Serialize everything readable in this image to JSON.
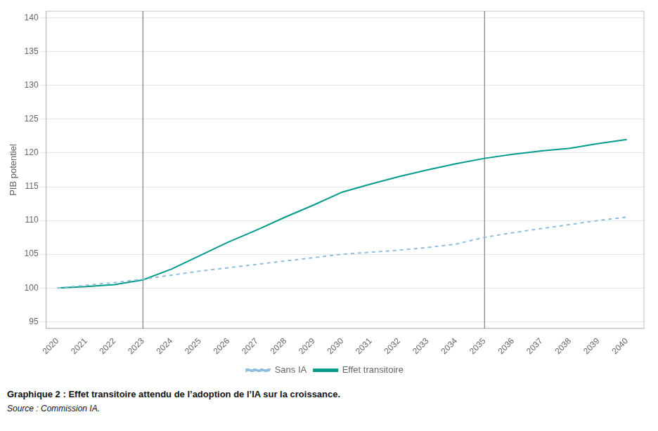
{
  "chart_data": {
    "type": "line",
    "x": [
      2020,
      2021,
      2022,
      2023,
      2024,
      2025,
      2026,
      2027,
      2028,
      2029,
      2030,
      2031,
      2032,
      2033,
      2034,
      2035,
      2036,
      2037,
      2038,
      2039,
      2040
    ],
    "series": [
      {
        "name": "Sans IA",
        "color": "#90bede",
        "line_style": "dashed",
        "values": [
          100.0,
          100.4,
          100.8,
          101.3,
          101.9,
          102.5,
          103.0,
          103.5,
          104.0,
          104.5,
          105.0,
          105.3,
          105.6,
          106.0,
          106.5,
          107.5,
          108.2,
          108.8,
          109.4,
          110.0,
          110.5
        ]
      },
      {
        "name": "Effet transitoire",
        "color": "#009b8a",
        "line_style": "solid",
        "values": [
          100.0,
          100.2,
          100.5,
          101.2,
          102.8,
          104.8,
          106.8,
          108.6,
          110.5,
          112.3,
          114.2,
          115.4,
          116.5,
          117.5,
          118.4,
          119.2,
          119.8,
          120.3,
          120.7,
          121.4,
          122.0
        ]
      }
    ],
    "vlines": [
      {
        "x": 2023,
        "color": "#666666"
      },
      {
        "x": 2035,
        "color": "#666666"
      }
    ],
    "xlim": [
      2019.6,
      2040.6
    ],
    "xticks": [
      2020,
      2021,
      2022,
      2023,
      2024,
      2025,
      2026,
      2027,
      2028,
      2029,
      2030,
      2031,
      2032,
      2033,
      2034,
      2035,
      2036,
      2037,
      2038,
      2039,
      2040
    ],
    "ylim": [
      94,
      141
    ],
    "yticks": [
      95,
      100,
      105,
      110,
      115,
      120,
      125,
      130,
      135,
      140
    ],
    "y_label": "PIB potentiel",
    "grid": "y",
    "legend": "bottom",
    "caption": "Graphique 2 : Effet transitoire attendu de l’adoption de l’IA sur la croissance.",
    "source": "Source : Commission IA."
  }
}
